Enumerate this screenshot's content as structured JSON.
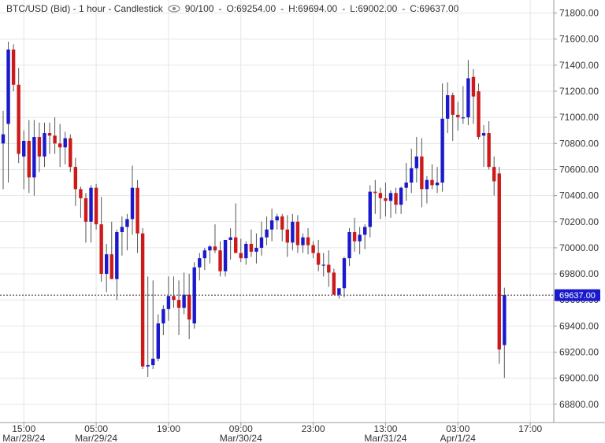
{
  "header": {
    "title": "BTC/USD (Bid) - 1 hour - Candlestick",
    "view_icon": "eye-icon",
    "view_ratio": "90/100",
    "open": "O:69254.00",
    "high": "H:69694.00",
    "low": "L:69002.00",
    "close": "C:69637.00"
  },
  "chart_data": {
    "type": "candlestick",
    "y_ticks": [
      68800,
      69000,
      69200,
      69400,
      69600,
      69800,
      70000,
      70200,
      70400,
      70600,
      70800,
      71000,
      71200,
      71400,
      71600,
      71800
    ],
    "y_tick_labels": [
      "68800.00",
      "69000.00",
      "69200.00",
      "69400.00",
      "69600.00",
      "69800.00",
      "70000.00",
      "70200.00",
      "70400.00",
      "70600.00",
      "70800.00",
      "71000.00",
      "71200.00",
      "71400.00",
      "71600.00",
      "71800.00"
    ],
    "ylim": [
      68660,
      71900
    ],
    "grid": true,
    "x_ticks": [
      {
        "index": 4,
        "time": "15:00",
        "date": "Mar/28/24"
      },
      {
        "index": 18,
        "time": "05:00",
        "date": "Mar/29/24"
      },
      {
        "index": 32,
        "time": "19:00",
        "date": ""
      },
      {
        "index": 46,
        "time": "09:00",
        "date": "Mar/30/24"
      },
      {
        "index": 60,
        "time": "23:00",
        "date": ""
      },
      {
        "index": 74,
        "time": "13:00",
        "date": "Mar/31/24"
      },
      {
        "index": 88,
        "time": "03:00",
        "date": "Apr/1/24"
      },
      {
        "index": 102,
        "time": "17:00",
        "date": ""
      }
    ],
    "last_price": 69637,
    "last_price_label": "69637.00",
    "colors": {
      "up": "#1a1acc",
      "down": "#cc1a1a",
      "wick": "#555555",
      "grid": "#e6e6e6",
      "badge": "#1a1acc",
      "last_line": "#333333"
    },
    "candles": [
      {
        "o": 70800,
        "h": 71050,
        "l": 70450,
        "c": 70870
      },
      {
        "o": 70950,
        "h": 71580,
        "l": 70500,
        "c": 71520
      },
      {
        "o": 71520,
        "h": 71560,
        "l": 71200,
        "c": 71250
      },
      {
        "o": 71250,
        "h": 71380,
        "l": 70650,
        "c": 70720
      },
      {
        "o": 70700,
        "h": 70900,
        "l": 70450,
        "c": 70820
      },
      {
        "o": 70820,
        "h": 70980,
        "l": 70420,
        "c": 70540
      },
      {
        "o": 70540,
        "h": 70980,
        "l": 70400,
        "c": 70850
      },
      {
        "o": 70850,
        "h": 70960,
        "l": 70580,
        "c": 70700
      },
      {
        "o": 70700,
        "h": 70960,
        "l": 70620,
        "c": 70880
      },
      {
        "o": 70880,
        "h": 70960,
        "l": 70720,
        "c": 70860
      },
      {
        "o": 70860,
        "h": 71000,
        "l": 70720,
        "c": 70800
      },
      {
        "o": 70800,
        "h": 70950,
        "l": 70620,
        "c": 70770
      },
      {
        "o": 70770,
        "h": 70890,
        "l": 70640,
        "c": 70840
      },
      {
        "o": 70840,
        "h": 70870,
        "l": 70580,
        "c": 70620
      },
      {
        "o": 70620,
        "h": 70690,
        "l": 70320,
        "c": 70450
      },
      {
        "o": 70450,
        "h": 70470,
        "l": 70230,
        "c": 70380
      },
      {
        "o": 70380,
        "h": 70420,
        "l": 70040,
        "c": 70200
      },
      {
        "o": 70200,
        "h": 70480,
        "l": 70040,
        "c": 70460
      },
      {
        "o": 70460,
        "h": 70490,
        "l": 70140,
        "c": 70180
      },
      {
        "o": 70180,
        "h": 70390,
        "l": 69740,
        "c": 69800
      },
      {
        "o": 69800,
        "h": 70030,
        "l": 69660,
        "c": 69950
      },
      {
        "o": 69950,
        "h": 70200,
        "l": 69760,
        "c": 69760
      },
      {
        "o": 69760,
        "h": 70140,
        "l": 69600,
        "c": 70120
      },
      {
        "o": 70120,
        "h": 70240,
        "l": 69940,
        "c": 70160
      },
      {
        "o": 70160,
        "h": 70260,
        "l": 69980,
        "c": 70220
      },
      {
        "o": 70220,
        "h": 70630,
        "l": 70100,
        "c": 70460
      },
      {
        "o": 70460,
        "h": 70520,
        "l": 69960,
        "c": 70110
      },
      {
        "o": 70110,
        "h": 70150,
        "l": 69070,
        "c": 69090
      },
      {
        "o": 69090,
        "h": 69780,
        "l": 69010,
        "c": 69100
      },
      {
        "o": 69100,
        "h": 69750,
        "l": 69070,
        "c": 69150
      },
      {
        "o": 69150,
        "h": 69490,
        "l": 69130,
        "c": 69420
      },
      {
        "o": 69420,
        "h": 69560,
        "l": 69330,
        "c": 69530
      },
      {
        "o": 69530,
        "h": 69780,
        "l": 69440,
        "c": 69630
      },
      {
        "o": 69630,
        "h": 69780,
        "l": 69540,
        "c": 69600
      },
      {
        "o": 69600,
        "h": 69750,
        "l": 69330,
        "c": 69540
      },
      {
        "o": 69540,
        "h": 69810,
        "l": 69490,
        "c": 69640
      },
      {
        "o": 69640,
        "h": 69800,
        "l": 69300,
        "c": 69450
      },
      {
        "o": 69420,
        "h": 69890,
        "l": 69380,
        "c": 69850
      },
      {
        "o": 69850,
        "h": 69960,
        "l": 69750,
        "c": 69920
      },
      {
        "o": 69920,
        "h": 70000,
        "l": 69830,
        "c": 69980
      },
      {
        "o": 69980,
        "h": 70020,
        "l": 69880,
        "c": 70010
      },
      {
        "o": 70010,
        "h": 70180,
        "l": 69960,
        "c": 69980
      },
      {
        "o": 69980,
        "h": 70050,
        "l": 69780,
        "c": 69820
      },
      {
        "o": 69820,
        "h": 70060,
        "l": 69780,
        "c": 70060
      },
      {
        "o": 70060,
        "h": 70150,
        "l": 69910,
        "c": 70080
      },
      {
        "o": 70080,
        "h": 70340,
        "l": 69980,
        "c": 69960
      },
      {
        "o": 69960,
        "h": 70070,
        "l": 69890,
        "c": 69920
      },
      {
        "o": 69920,
        "h": 70050,
        "l": 69870,
        "c": 70030
      },
      {
        "o": 70030,
        "h": 70140,
        "l": 69930,
        "c": 69970
      },
      {
        "o": 69970,
        "h": 70110,
        "l": 69880,
        "c": 70000
      },
      {
        "o": 70000,
        "h": 70200,
        "l": 69940,
        "c": 70080
      },
      {
        "o": 70080,
        "h": 70240,
        "l": 70020,
        "c": 70140
      },
      {
        "o": 70140,
        "h": 70300,
        "l": 70050,
        "c": 70210
      },
      {
        "o": 70210,
        "h": 70260,
        "l": 70140,
        "c": 70240
      },
      {
        "o": 70240,
        "h": 70260,
        "l": 70050,
        "c": 70140
      },
      {
        "o": 70140,
        "h": 70250,
        "l": 69930,
        "c": 70040
      },
      {
        "o": 70040,
        "h": 70260,
        "l": 69980,
        "c": 70200
      },
      {
        "o": 70200,
        "h": 70250,
        "l": 69960,
        "c": 70020
      },
      {
        "o": 70020,
        "h": 70110,
        "l": 69960,
        "c": 70080
      },
      {
        "o": 70080,
        "h": 70150,
        "l": 69950,
        "c": 70020
      },
      {
        "o": 70020,
        "h": 70050,
        "l": 69920,
        "c": 69960
      },
      {
        "o": 69960,
        "h": 70060,
        "l": 69820,
        "c": 69870
      },
      {
        "o": 69870,
        "h": 69960,
        "l": 69780,
        "c": 69870
      },
      {
        "o": 69870,
        "h": 69980,
        "l": 69700,
        "c": 69810
      },
      {
        "o": 69810,
        "h": 69840,
        "l": 69640,
        "c": 69640
      },
      {
        "o": 69640,
        "h": 69680,
        "l": 69610,
        "c": 69690
      },
      {
        "o": 69690,
        "h": 69930,
        "l": 69620,
        "c": 69920
      },
      {
        "o": 69920,
        "h": 70150,
        "l": 69860,
        "c": 70120
      },
      {
        "o": 70120,
        "h": 70230,
        "l": 69970,
        "c": 70050
      },
      {
        "o": 70050,
        "h": 70160,
        "l": 69950,
        "c": 70100
      },
      {
        "o": 70100,
        "h": 70180,
        "l": 69990,
        "c": 70160
      },
      {
        "o": 70160,
        "h": 70480,
        "l": 70080,
        "c": 70430
      },
      {
        "o": 70430,
        "h": 70520,
        "l": 70260,
        "c": 70420
      },
      {
        "o": 70420,
        "h": 70460,
        "l": 70220,
        "c": 70380
      },
      {
        "o": 70380,
        "h": 70500,
        "l": 70240,
        "c": 70360
      },
      {
        "o": 70360,
        "h": 70440,
        "l": 70230,
        "c": 70420
      },
      {
        "o": 70420,
        "h": 70460,
        "l": 70260,
        "c": 70330
      },
      {
        "o": 70330,
        "h": 70470,
        "l": 70260,
        "c": 70460
      },
      {
        "o": 70460,
        "h": 70650,
        "l": 70360,
        "c": 70500
      },
      {
        "o": 70500,
        "h": 70760,
        "l": 70420,
        "c": 70610
      },
      {
        "o": 70610,
        "h": 70850,
        "l": 70500,
        "c": 70700
      },
      {
        "o": 70700,
        "h": 70840,
        "l": 70310,
        "c": 70450
      },
      {
        "o": 70450,
        "h": 70550,
        "l": 70340,
        "c": 70520
      },
      {
        "o": 70520,
        "h": 70640,
        "l": 70450,
        "c": 70480
      },
      {
        "o": 70480,
        "h": 70620,
        "l": 70420,
        "c": 70500
      },
      {
        "o": 70500,
        "h": 71260,
        "l": 70430,
        "c": 70990
      },
      {
        "o": 70990,
        "h": 71270,
        "l": 70880,
        "c": 71170
      },
      {
        "o": 71170,
        "h": 71190,
        "l": 70820,
        "c": 71020
      },
      {
        "o": 71020,
        "h": 71120,
        "l": 70900,
        "c": 71000
      },
      {
        "o": 71000,
        "h": 71240,
        "l": 70950,
        "c": 71000
      },
      {
        "o": 71000,
        "h": 71440,
        "l": 70940,
        "c": 71300
      },
      {
        "o": 71310,
        "h": 71370,
        "l": 70950,
        "c": 71160
      },
      {
        "o": 71200,
        "h": 71260,
        "l": 70830,
        "c": 70850
      },
      {
        "o": 70860,
        "h": 70940,
        "l": 70620,
        "c": 70880
      },
      {
        "o": 70880,
        "h": 70970,
        "l": 70600,
        "c": 70620
      },
      {
        "o": 70620,
        "h": 70700,
        "l": 70400,
        "c": 70510
      },
      {
        "o": 70570,
        "h": 70620,
        "l": 69110,
        "c": 69220
      },
      {
        "o": 69254,
        "h": 69694,
        "l": 69002,
        "c": 69637
      }
    ]
  }
}
